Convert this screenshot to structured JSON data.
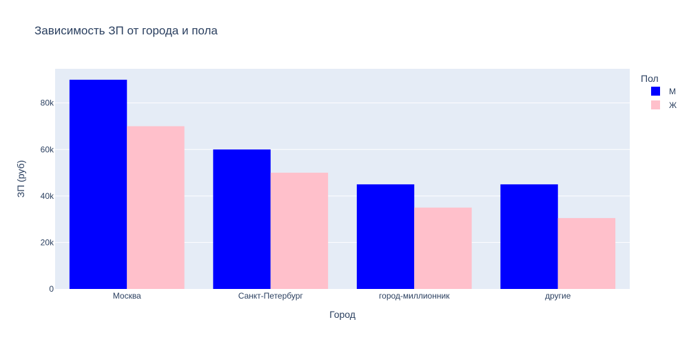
{
  "chart_data": {
    "type": "bar",
    "title": "Зависимость ЗП от города и пола",
    "xlabel": "Город",
    "ylabel": "ЗП (руб)",
    "categories": [
      "Москва",
      "Санкт-Петербург",
      "город-миллионник",
      "другие"
    ],
    "series": [
      {
        "name": "М",
        "values": [
          90000,
          60000,
          45000,
          45000
        ],
        "color": "#0000ff"
      },
      {
        "name": "Ж",
        "values": [
          70000,
          50000,
          35000,
          30500
        ],
        "color": "#ffc0cb"
      }
    ],
    "ylim": [
      0,
      94700
    ],
    "yticks": [
      0,
      20000,
      40000,
      60000,
      80000
    ],
    "ytick_labels": [
      "0",
      "20k",
      "40k",
      "60k",
      "80k"
    ],
    "legend_title": "Пол",
    "legend_position": "top-right",
    "grid": true,
    "plot_background": "#e5ecf6"
  }
}
